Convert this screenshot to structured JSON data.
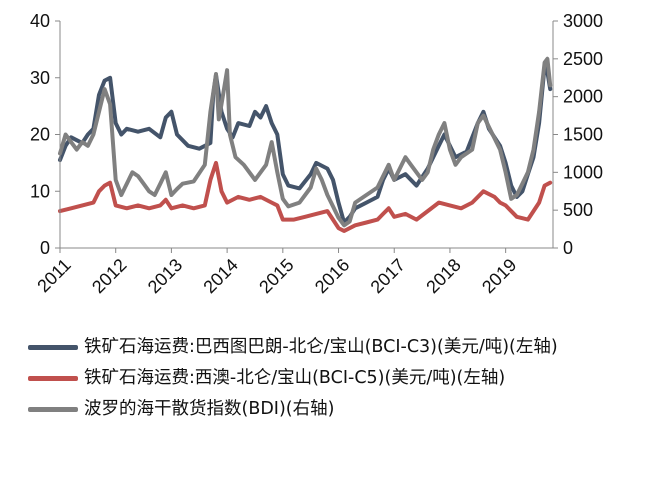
{
  "chart_data": {
    "type": "line",
    "y_left": {
      "min": 0,
      "max": 40,
      "ticks": [
        0,
        10,
        20,
        30,
        40
      ]
    },
    "y_right": {
      "min": 0,
      "max": 3000,
      "ticks": [
        0,
        500,
        1000,
        1500,
        2000,
        2500,
        3000
      ]
    },
    "x": {
      "start": 2011.0,
      "end": 2019.85,
      "tick_labels": [
        "2011",
        "2012",
        "2013",
        "2014",
        "2015",
        "2016",
        "2017",
        "2018",
        "2019"
      ]
    },
    "series": [
      {
        "name": "铁矿石海运费:巴西图巴朗-北仑/宝山(BCI-C3)(美元/吨)(左轴)",
        "color": "#44546a",
        "axis": "left",
        "points": [
          [
            2011.0,
            15.5
          ],
          [
            2011.1,
            18
          ],
          [
            2011.2,
            19.5
          ],
          [
            2011.3,
            19
          ],
          [
            2011.4,
            18.5
          ],
          [
            2011.5,
            20
          ],
          [
            2011.6,
            21
          ],
          [
            2011.7,
            27
          ],
          [
            2011.8,
            29.5
          ],
          [
            2011.9,
            30
          ],
          [
            2012.0,
            22
          ],
          [
            2012.1,
            20
          ],
          [
            2012.2,
            21
          ],
          [
            2012.4,
            20.5
          ],
          [
            2012.6,
            21
          ],
          [
            2012.8,
            19.5
          ],
          [
            2012.9,
            23
          ],
          [
            2013.0,
            24
          ],
          [
            2013.1,
            20
          ],
          [
            2013.3,
            18
          ],
          [
            2013.5,
            17.5
          ],
          [
            2013.7,
            18.5
          ],
          [
            2013.75,
            27
          ],
          [
            2013.8,
            30.5
          ],
          [
            2013.9,
            24
          ],
          [
            2014.0,
            21
          ],
          [
            2014.1,
            19.5
          ],
          [
            2014.2,
            22
          ],
          [
            2014.4,
            21.5
          ],
          [
            2014.5,
            24
          ],
          [
            2014.6,
            23
          ],
          [
            2014.7,
            25
          ],
          [
            2014.8,
            22
          ],
          [
            2014.9,
            20
          ],
          [
            2015.0,
            13
          ],
          [
            2015.1,
            11
          ],
          [
            2015.3,
            10.5
          ],
          [
            2015.5,
            13
          ],
          [
            2015.6,
            15
          ],
          [
            2015.8,
            14
          ],
          [
            2015.9,
            12
          ],
          [
            2016.0,
            8
          ],
          [
            2016.1,
            4.5
          ],
          [
            2016.2,
            5.5
          ],
          [
            2016.3,
            7
          ],
          [
            2016.5,
            8
          ],
          [
            2016.7,
            9
          ],
          [
            2016.8,
            12
          ],
          [
            2016.9,
            14
          ],
          [
            2017.0,
            12
          ],
          [
            2017.2,
            13
          ],
          [
            2017.4,
            11
          ],
          [
            2017.6,
            14
          ],
          [
            2017.8,
            18
          ],
          [
            2017.9,
            20
          ],
          [
            2018.0,
            18
          ],
          [
            2018.1,
            16
          ],
          [
            2018.3,
            17
          ],
          [
            2018.5,
            22
          ],
          [
            2018.6,
            24
          ],
          [
            2018.7,
            21
          ],
          [
            2018.9,
            18
          ],
          [
            2019.0,
            15
          ],
          [
            2019.1,
            11
          ],
          [
            2019.2,
            9
          ],
          [
            2019.3,
            10
          ],
          [
            2019.4,
            13
          ],
          [
            2019.5,
            16
          ],
          [
            2019.6,
            22
          ],
          [
            2019.7,
            32
          ],
          [
            2019.75,
            31
          ],
          [
            2019.8,
            28
          ]
        ]
      },
      {
        "name": "铁矿石海运费:西澳-北仑/宝山(BCI-C5)(美元/吨)(左轴)",
        "color": "#c0504d",
        "axis": "left",
        "points": [
          [
            2011.0,
            6.5
          ],
          [
            2011.2,
            7
          ],
          [
            2011.4,
            7.5
          ],
          [
            2011.6,
            8
          ],
          [
            2011.7,
            10
          ],
          [
            2011.8,
            11
          ],
          [
            2011.9,
            11.5
          ],
          [
            2012.0,
            7.5
          ],
          [
            2012.2,
            7
          ],
          [
            2012.4,
            7.5
          ],
          [
            2012.6,
            7
          ],
          [
            2012.8,
            7.5
          ],
          [
            2012.9,
            8.5
          ],
          [
            2013.0,
            7
          ],
          [
            2013.2,
            7.5
          ],
          [
            2013.4,
            7
          ],
          [
            2013.6,
            7.5
          ],
          [
            2013.7,
            12
          ],
          [
            2013.8,
            15
          ],
          [
            2013.9,
            10
          ],
          [
            2014.0,
            8
          ],
          [
            2014.2,
            9
          ],
          [
            2014.4,
            8.5
          ],
          [
            2014.6,
            9
          ],
          [
            2014.8,
            8
          ],
          [
            2014.9,
            7.5
          ],
          [
            2015.0,
            5
          ],
          [
            2015.2,
            5
          ],
          [
            2015.4,
            5.5
          ],
          [
            2015.6,
            6
          ],
          [
            2015.8,
            6.5
          ],
          [
            2015.9,
            5
          ],
          [
            2016.0,
            3.5
          ],
          [
            2016.1,
            3
          ],
          [
            2016.3,
            4
          ],
          [
            2016.5,
            4.5
          ],
          [
            2016.7,
            5
          ],
          [
            2016.8,
            6
          ],
          [
            2016.9,
            7
          ],
          [
            2017.0,
            5.5
          ],
          [
            2017.2,
            6
          ],
          [
            2017.4,
            5
          ],
          [
            2017.6,
            6.5
          ],
          [
            2017.8,
            8
          ],
          [
            2018.0,
            7.5
          ],
          [
            2018.2,
            7
          ],
          [
            2018.4,
            8
          ],
          [
            2018.6,
            10
          ],
          [
            2018.8,
            9
          ],
          [
            2018.9,
            8
          ],
          [
            2019.0,
            7.5
          ],
          [
            2019.2,
            5.5
          ],
          [
            2019.4,
            5
          ],
          [
            2019.5,
            6.5
          ],
          [
            2019.6,
            8
          ],
          [
            2019.7,
            11
          ],
          [
            2019.8,
            11.5
          ]
        ]
      },
      {
        "name": "波罗的海干散货指数(BDI)(右轴)",
        "color": "#808080",
        "axis": "right",
        "points": [
          [
            2011.0,
            1250
          ],
          [
            2011.1,
            1500
          ],
          [
            2011.2,
            1400
          ],
          [
            2011.3,
            1300
          ],
          [
            2011.4,
            1400
          ],
          [
            2011.5,
            1350
          ],
          [
            2011.6,
            1500
          ],
          [
            2011.7,
            1800
          ],
          [
            2011.8,
            2100
          ],
          [
            2011.9,
            1900
          ],
          [
            2012.0,
            900
          ],
          [
            2012.1,
            700
          ],
          [
            2012.2,
            850
          ],
          [
            2012.3,
            1000
          ],
          [
            2012.4,
            950
          ],
          [
            2012.5,
            850
          ],
          [
            2012.6,
            750
          ],
          [
            2012.7,
            700
          ],
          [
            2012.8,
            850
          ],
          [
            2012.9,
            1000
          ],
          [
            2013.0,
            700
          ],
          [
            2013.1,
            780
          ],
          [
            2013.2,
            850
          ],
          [
            2013.4,
            880
          ],
          [
            2013.6,
            1100
          ],
          [
            2013.7,
            1800
          ],
          [
            2013.8,
            2300
          ],
          [
            2013.85,
            1700
          ],
          [
            2013.9,
            1900
          ],
          [
            2014.0,
            2350
          ],
          [
            2014.05,
            1500
          ],
          [
            2014.15,
            1200
          ],
          [
            2014.3,
            1100
          ],
          [
            2014.5,
            900
          ],
          [
            2014.7,
            1100
          ],
          [
            2014.8,
            1400
          ],
          [
            2014.9,
            1000
          ],
          [
            2015.0,
            650
          ],
          [
            2015.1,
            550
          ],
          [
            2015.3,
            600
          ],
          [
            2015.5,
            800
          ],
          [
            2015.6,
            1050
          ],
          [
            2015.7,
            900
          ],
          [
            2015.8,
            700
          ],
          [
            2015.9,
            550
          ],
          [
            2016.0,
            400
          ],
          [
            2016.1,
            300
          ],
          [
            2016.2,
            350
          ],
          [
            2016.3,
            600
          ],
          [
            2016.5,
            700
          ],
          [
            2016.7,
            800
          ],
          [
            2016.8,
            950
          ],
          [
            2016.9,
            1100
          ],
          [
            2017.0,
            900
          ],
          [
            2017.2,
            1200
          ],
          [
            2017.3,
            1100
          ],
          [
            2017.5,
            900
          ],
          [
            2017.6,
            1000
          ],
          [
            2017.7,
            1300
          ],
          [
            2017.8,
            1500
          ],
          [
            2017.9,
            1650
          ],
          [
            2018.0,
            1300
          ],
          [
            2018.1,
            1100
          ],
          [
            2018.2,
            1200
          ],
          [
            2018.4,
            1300
          ],
          [
            2018.5,
            1650
          ],
          [
            2018.6,
            1750
          ],
          [
            2018.7,
            1600
          ],
          [
            2018.8,
            1450
          ],
          [
            2018.9,
            1300
          ],
          [
            2019.0,
            1000
          ],
          [
            2019.1,
            650
          ],
          [
            2019.2,
            700
          ],
          [
            2019.3,
            850
          ],
          [
            2019.4,
            1000
          ],
          [
            2019.5,
            1300
          ],
          [
            2019.6,
            1800
          ],
          [
            2019.7,
            2450
          ],
          [
            2019.75,
            2500
          ],
          [
            2019.8,
            2150
          ]
        ]
      }
    ]
  }
}
